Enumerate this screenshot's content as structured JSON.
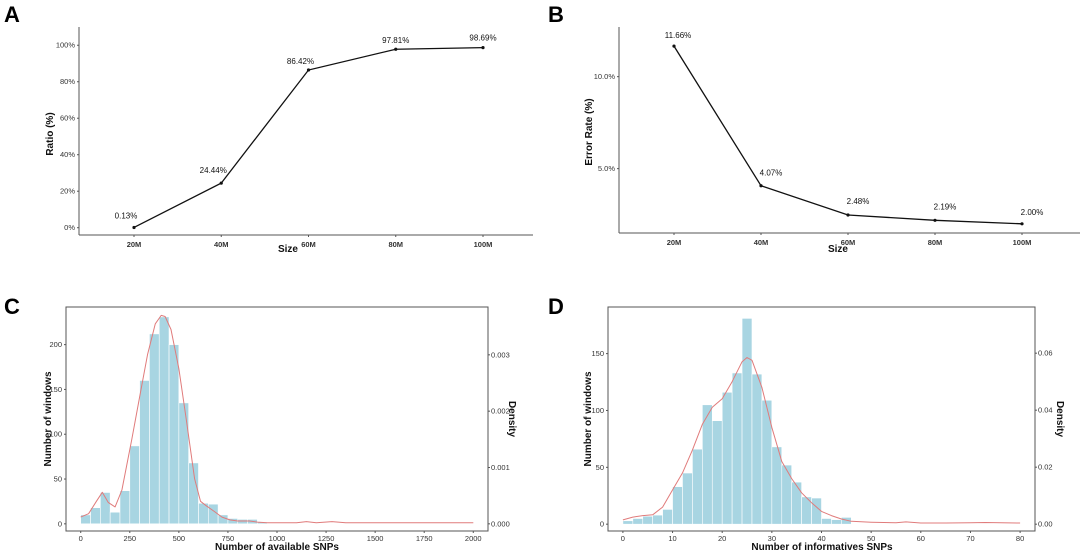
{
  "colors": {
    "bar_fill": "#a8d5e2",
    "bar_stroke": "#ffffff",
    "density_line": "#e07b7b",
    "line": "#111111",
    "axis": "#555555"
  },
  "chart_data": [
    {
      "panel": "A",
      "type": "line",
      "title": "",
      "xlabel": "Size",
      "ylabel": "Ratio (%)",
      "categories": [
        "20M",
        "40M",
        "60M",
        "80M",
        "100M"
      ],
      "values": [
        0.13,
        24.44,
        86.42,
        97.81,
        98.69
      ],
      "labels": [
        "0.13%",
        "24.44%",
        "86.42%",
        "97.81%",
        "98.69%"
      ],
      "yticks": [
        0,
        20,
        40,
        60,
        80,
        100
      ],
      "ytick_labels": [
        "0%",
        "20%",
        "40%",
        "60%",
        "80%",
        "100%"
      ],
      "ylim": [
        -4,
        110
      ],
      "grid": false
    },
    {
      "panel": "B",
      "type": "line",
      "title": "",
      "xlabel": "Size",
      "ylabel": "Error Rate (%)",
      "categories": [
        "20M",
        "40M",
        "60M",
        "80M",
        "100M"
      ],
      "values": [
        11.66,
        4.07,
        2.48,
        2.19,
        2.0
      ],
      "labels": [
        "11.66%",
        "4.07%",
        "2.48%",
        "2.19%",
        "2.00%"
      ],
      "yticks": [
        5.0,
        10.0
      ],
      "ytick_labels": [
        "5.0%",
        "10.0%"
      ],
      "ylim": [
        1.5,
        12.7
      ],
      "grid": false
    },
    {
      "panel": "C",
      "type": "bar",
      "subtype": "histogram_with_density",
      "title": "",
      "xlabel": "Number of available SNPs",
      "ylabel": "Number of windows",
      "y2label": "Density",
      "bin_start": 0,
      "bin_width": 50,
      "counts": [
        10,
        18,
        35,
        13,
        37,
        87,
        160,
        212,
        231,
        200,
        135,
        68,
        23,
        22,
        10,
        6,
        5,
        5,
        2
      ],
      "xlim": [
        -75,
        2075
      ],
      "ylim": [
        -8,
        242
      ],
      "xticks": [
        0,
        250,
        500,
        750,
        1000,
        1250,
        1500,
        1750,
        2000
      ],
      "xtick_labels": [
        "0",
        "250",
        "500",
        "750",
        "1000",
        "1250",
        "1500",
        "1750",
        "2000"
      ],
      "yticks": [
        0,
        50,
        100,
        150,
        200
      ],
      "ytick_labels": [
        "0",
        "50",
        "100",
        "150",
        "200"
      ],
      "y2ticks": [
        0.0,
        0.001,
        0.002,
        0.003
      ],
      "y2tick_labels": [
        "0.000",
        "0.001",
        "0.002",
        "0.003"
      ],
      "density": {
        "x": [
          0,
          40,
          80,
          110,
          140,
          175,
          210,
          260,
          300,
          340,
          380,
          410,
          430,
          460,
          500,
          540,
          580,
          610,
          640,
          680,
          720,
          760,
          800,
          860,
          900,
          950,
          1000,
          1100,
          1150,
          1200,
          1280,
          1350,
          1500,
          1750,
          2000
        ],
        "y": [
          0.00012,
          0.00018,
          0.0004,
          0.00056,
          0.00038,
          0.0003,
          0.0006,
          0.0015,
          0.00225,
          0.003,
          0.00355,
          0.0037,
          0.00368,
          0.00345,
          0.00275,
          0.0018,
          0.0008,
          0.0004,
          0.00032,
          0.00022,
          0.00012,
          7e-05,
          5e-05,
          5e-05,
          3e-05,
          2e-05,
          2e-05,
          2e-05,
          4e-05,
          2e-05,
          4e-05,
          2e-05,
          2e-05,
          2e-05,
          2e-05
        ]
      },
      "grid": false
    },
    {
      "panel": "D",
      "type": "bar",
      "subtype": "histogram_with_density",
      "title": "",
      "xlabel": "Number of informatives SNPs",
      "ylabel": "Number of windows",
      "y2label": "Density",
      "bin_start": 0,
      "bin_width": 2,
      "counts": [
        3,
        5,
        7,
        8,
        13,
        33,
        45,
        66,
        105,
        91,
        116,
        133,
        181,
        132,
        109,
        68,
        52,
        37,
        24,
        23,
        5,
        4,
        6
      ],
      "xlim": [
        -3,
        83
      ],
      "ylim": [
        -6,
        191
      ],
      "xticks": [
        0,
        10,
        20,
        30,
        40,
        50,
        60,
        70,
        80
      ],
      "xtick_labels": [
        "0",
        "10",
        "20",
        "30",
        "40",
        "50",
        "60",
        "70",
        "80"
      ],
      "yticks": [
        0,
        50,
        100,
        150
      ],
      "ytick_labels": [
        "0",
        "50",
        "100",
        "150"
      ],
      "y2ticks": [
        0.0,
        0.02,
        0.04,
        0.06
      ],
      "y2tick_labels": [
        "0.00",
        "0.02",
        "0.04",
        "0.06"
      ],
      "density": {
        "x": [
          0,
          2,
          4,
          6,
          8,
          10,
          12,
          14,
          16,
          18,
          20,
          22,
          24,
          25,
          26,
          28,
          30,
          32,
          34,
          36,
          38,
          40,
          42,
          44,
          46,
          50,
          55,
          57,
          60,
          65,
          70,
          73,
          80
        ],
        "y": [
          0.0015,
          0.0025,
          0.003,
          0.0033,
          0.006,
          0.012,
          0.018,
          0.026,
          0.035,
          0.041,
          0.044,
          0.05,
          0.057,
          0.0585,
          0.0575,
          0.048,
          0.034,
          0.022,
          0.016,
          0.011,
          0.0075,
          0.0045,
          0.003,
          0.0018,
          0.001,
          0.0007,
          0.0005,
          0.0008,
          0.0004,
          0.0004,
          0.0005,
          0.0006,
          0.0004
        ]
      },
      "grid": false
    }
  ]
}
